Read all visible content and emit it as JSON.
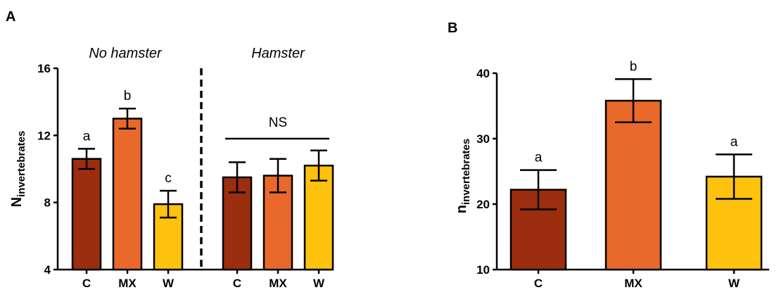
{
  "colors": {
    "C": "#9b2e0f",
    "MX": "#e8692a",
    "W": "#ffc20e"
  },
  "chart_data": [
    {
      "panel": "A",
      "type": "bar",
      "ylabel_main": "N",
      "ylabel_sub": "invertebrates",
      "ylim": [
        4,
        16
      ],
      "yticks": [
        4,
        8,
        12,
        16
      ],
      "groups": [
        {
          "label": "No hamster",
          "categories": [
            "C",
            "MX",
            "W"
          ],
          "values": [
            10.6,
            13.0,
            7.9
          ],
          "errors": [
            0.6,
            0.6,
            0.8
          ],
          "letters": [
            "a",
            "b",
            "c"
          ]
        },
        {
          "label": "Hamster",
          "categories": [
            "C",
            "MX",
            "W"
          ],
          "values": [
            9.5,
            9.6,
            10.2
          ],
          "errors": [
            0.9,
            1.0,
            0.9
          ],
          "annotation": "NS"
        }
      ]
    },
    {
      "panel": "B",
      "type": "bar",
      "ylabel_main": "n",
      "ylabel_sub": "invertebrates",
      "ylim": [
        10,
        40
      ],
      "yticks": [
        10,
        20,
        30,
        40
      ],
      "categories": [
        "C",
        "MX",
        "W"
      ],
      "values": [
        22.2,
        35.8,
        24.2
      ],
      "errors": [
        3.0,
        3.3,
        3.4
      ],
      "letters": [
        "a",
        "b",
        "a"
      ]
    }
  ]
}
